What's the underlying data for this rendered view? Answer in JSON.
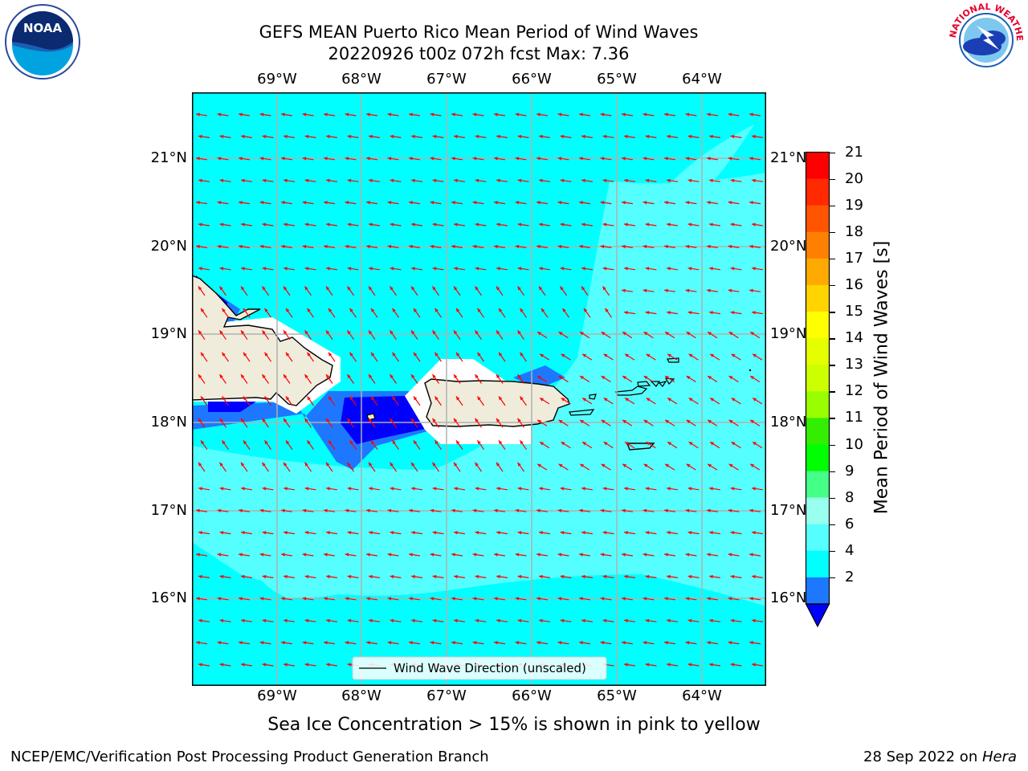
{
  "title": {
    "line1": "GEFS MEAN Puerto Rico Mean Period of Wind Waves",
    "line2": "20220926 t00z 072h fcst   Max: 7.36"
  },
  "map": {
    "lon_ticks": [
      "69°W",
      "68°W",
      "67°W",
      "66°W",
      "65°W",
      "64°W"
    ],
    "lat_ticks": [
      "21°N",
      "20°N",
      "19°N",
      "18°N",
      "17°N",
      "16°N"
    ],
    "land_color": "#efecdc",
    "ocean_base_color": "#00ffff",
    "legend_label": "Wind Wave Direction (unscaled)",
    "arrow_color": "#ff0000",
    "arrow_direction": "toward west-southwest"
  },
  "colorbar": {
    "label": "Mean Period of Wind Waves [s]",
    "ticks": [
      "21",
      "20",
      "19",
      "18",
      "17",
      "16",
      "15",
      "14",
      "13",
      "12",
      "11",
      "10",
      "9",
      "8",
      "6",
      "4",
      "2"
    ],
    "colors": [
      "#ff0000",
      "#ff2a00",
      "#ff5500",
      "#ff8000",
      "#ffaa00",
      "#ffd400",
      "#ffff00",
      "#e5ff00",
      "#ccff00",
      "#99ff00",
      "#33ee00",
      "#00ff00",
      "#44ff88",
      "#99ffee",
      "#55ffff",
      "#00ffff",
      "#1e78ff"
    ],
    "under_color": "#0000ff"
  },
  "footer": {
    "note": "Sea Ice Concentration > 15% is shown in pink to yellow",
    "left": "NCEP/EMC/Verification Post Processing Product Generation Branch",
    "right_prefix": "28 Sep 2022 on ",
    "right_host": "Hera"
  },
  "logos": {
    "noaa_text": "NOAA",
    "nws_text": "NATIONAL WEATHER SERVICE"
  }
}
